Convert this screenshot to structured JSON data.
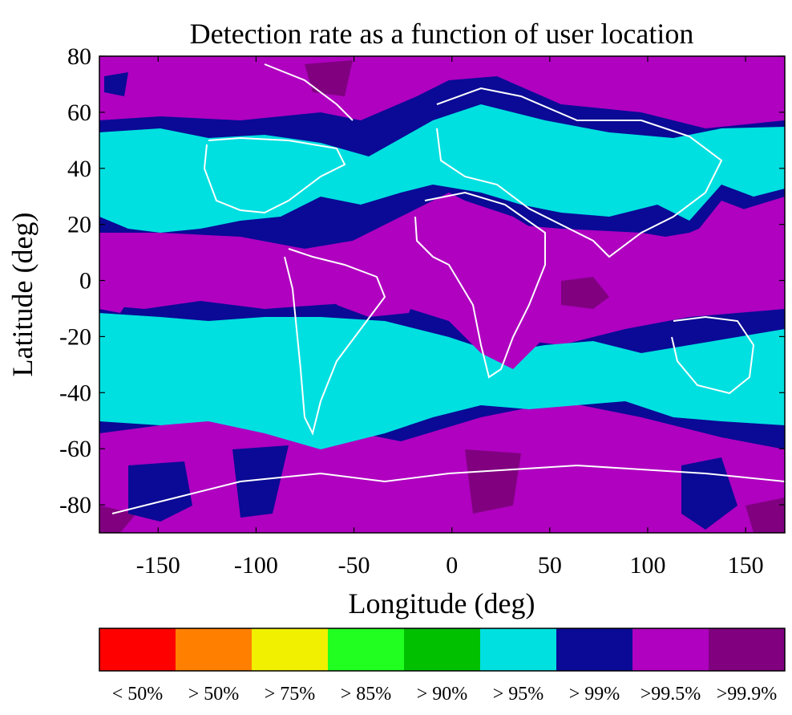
{
  "chart_data": {
    "type": "heatmap",
    "title": "Detection rate as a function of user location",
    "xlabel": "Longitude (deg)",
    "ylabel": "Latitude (deg)",
    "xlim": [
      -180,
      170
    ],
    "ylim": [
      -90,
      80
    ],
    "x_ticks": [
      -150,
      -100,
      -50,
      0,
      50,
      100,
      150
    ],
    "y_ticks": [
      80,
      60,
      40,
      20,
      0,
      -20,
      -40,
      -60,
      -80
    ],
    "x_tick_labels": [
      "-150",
      "-100",
      "-50",
      "0",
      "50",
      "100",
      "150"
    ],
    "y_tick_labels": [
      "80",
      "60",
      "40",
      "20",
      "0",
      "-20",
      "-40",
      "-60",
      "-80"
    ],
    "colorbar": {
      "placement": "bottom",
      "bins": [
        {
          "label": "< 50%",
          "color": "#ff0000"
        },
        {
          "label": "> 50%",
          "color": "#ff8000"
        },
        {
          "label": "> 75%",
          "color": "#f0f000"
        },
        {
          "label": "> 85%",
          "color": "#20ff20"
        },
        {
          "label": "> 90%",
          "color": "#00c000"
        },
        {
          "label": "> 95%",
          "color": "#00e0e0"
        },
        {
          "label": "> 99%",
          "color": "#0a0a96"
        },
        {
          "label": ">99.5%",
          "color": "#b000c0"
        },
        {
          "label": ">99.9%",
          "color": "#800080"
        }
      ]
    },
    "regions": [
      {
        "name": "cyan-north-band",
        "level": "> 95%",
        "lat_range": [
          20,
          55
        ]
      },
      {
        "name": "cyan-south-band",
        "level": "> 95%",
        "lat_range": [
          -50,
          -10
        ]
      },
      {
        "name": "navy-equatorial",
        "level": "> 99%",
        "lat_range": [
          -10,
          20
        ]
      },
      {
        "name": "magenta-equatorial",
        "level": ">99.5%",
        "lat_range": [
          -20,
          15
        ]
      },
      {
        "name": "magenta-polar",
        "level": ">99.5%",
        "lat_range": [
          -90,
          -55
        ]
      },
      {
        "name": "magenta-arctic",
        "level": ">99.5%",
        "lat_range": [
          60,
          80
        ]
      }
    ]
  }
}
